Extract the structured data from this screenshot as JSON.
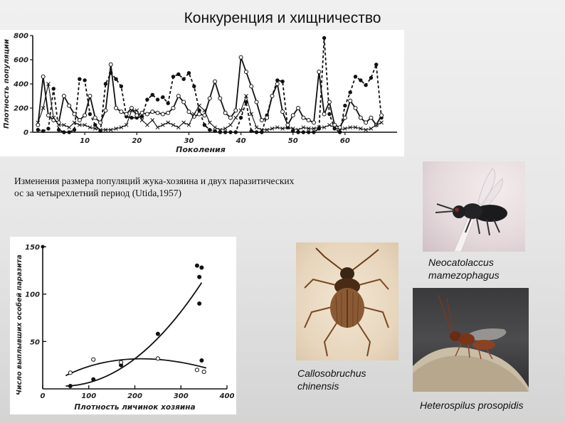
{
  "slide": {
    "title": "Конкуренция и хищничество",
    "caption_line1": "Изменения размера популяций жука-хозяина и двух паразитических",
    "caption_line2": "ос за четырехлетний период (Utida,1957)"
  },
  "species": {
    "neocatolaccus_line1": "Neocatolaccus",
    "neocatolaccus_line2": "mamezophagus",
    "callosobruchus_line1": "Callosobruchus",
    "callosobruchus_line2": "chinensis",
    "heterospilus": "Heterospilus prosopidis"
  },
  "chart_data": [
    {
      "type": "line",
      "ylabel": "Плотность популяции",
      "xlabel": "Поколения",
      "ylim": [
        0,
        800
      ],
      "xlim": [
        0,
        70
      ],
      "yticks": [
        "0",
        "200",
        "400",
        "600",
        "800"
      ],
      "xticks": [
        "10",
        "20",
        "30",
        "40",
        "50",
        "60"
      ],
      "grid": false,
      "series": [
        {
          "marker": "filled-circle",
          "dash": "dashed",
          "x": [
            1,
            2,
            3,
            4,
            5,
            6,
            7,
            8,
            9,
            10,
            11,
            12,
            13,
            14,
            15,
            16,
            17,
            18,
            19,
            20,
            21,
            22,
            23,
            24,
            25,
            26,
            27,
            28,
            29,
            30,
            31,
            32,
            33,
            34,
            35,
            36,
            37,
            38,
            39,
            40,
            41,
            42,
            43,
            44,
            45,
            46,
            47,
            48,
            49,
            50,
            51,
            52,
            53,
            54,
            55,
            56,
            57,
            58,
            59,
            60,
            61,
            62,
            63,
            64,
            65,
            66,
            67
          ],
          "y": [
            20,
            10,
            30,
            360,
            20,
            0,
            0,
            20,
            440,
            430,
            150,
            60,
            10,
            400,
            490,
            440,
            380,
            130,
            120,
            120,
            130,
            270,
            310,
            270,
            290,
            240,
            460,
            480,
            440,
            490,
            380,
            180,
            60,
            20,
            10,
            0,
            0,
            0,
            0,
            120,
            250,
            10,
            0,
            0,
            140,
            300,
            430,
            420,
            40,
            10,
            0,
            0,
            0,
            0,
            30,
            780,
            150,
            30,
            0,
            220,
            330,
            460,
            430,
            390,
            450,
            560,
            120
          ]
        },
        {
          "marker": "open-circle",
          "dash": "solid",
          "x": [
            1,
            2,
            3,
            4,
            5,
            6,
            7,
            8,
            9,
            10,
            11,
            12,
            13,
            14,
            15,
            16,
            17,
            18,
            19,
            20,
            21,
            22,
            23,
            24,
            25,
            26,
            27,
            28,
            29,
            30,
            31,
            32,
            33,
            34,
            35,
            36,
            37,
            38,
            39,
            40,
            41,
            42,
            43,
            44,
            45,
            46,
            47,
            48,
            49,
            50,
            51,
            52,
            53,
            54,
            55,
            56,
            57,
            58,
            59,
            60,
            61,
            62,
            63,
            64,
            65,
            66,
            67
          ],
          "y": [
            60,
            460,
            140,
            100,
            80,
            300,
            220,
            150,
            100,
            140,
            300,
            120,
            80,
            180,
            560,
            200,
            170,
            150,
            200,
            140,
            160,
            150,
            170,
            160,
            150,
            160,
            200,
            300,
            250,
            170,
            130,
            150,
            140,
            280,
            420,
            280,
            160,
            120,
            180,
            620,
            500,
            380,
            250,
            100,
            120,
            300,
            400,
            170,
            60,
            140,
            200,
            120,
            100,
            80,
            500,
            150,
            250,
            60,
            40,
            120,
            260,
            200,
            120,
            80,
            120,
            60,
            140
          ]
        },
        {
          "marker": "cross",
          "dash": "solid",
          "x": [
            1,
            2,
            3,
            4,
            5,
            6,
            7,
            8,
            9,
            10,
            11,
            12,
            13,
            14,
            15,
            16,
            17,
            18,
            19,
            20,
            21,
            22,
            23,
            24,
            25,
            26,
            27,
            28,
            29,
            30,
            31,
            32,
            33,
            34,
            35,
            36,
            37,
            38,
            39,
            40,
            41,
            42,
            43,
            44,
            45,
            46,
            47,
            48,
            49,
            50,
            51,
            52,
            53,
            54,
            55,
            56,
            57,
            58,
            59,
            60,
            61,
            62,
            63,
            64,
            65,
            66,
            67
          ],
          "y": [
            80,
            200,
            400,
            120,
            60,
            60,
            40,
            80,
            60,
            60,
            40,
            30,
            20,
            20,
            20,
            30,
            40,
            60,
            180,
            180,
            100,
            60,
            100,
            40,
            60,
            80,
            60,
            40,
            80,
            60,
            150,
            220,
            180,
            80,
            40,
            20,
            30,
            60,
            120,
            180,
            300,
            150,
            40,
            20,
            20,
            30,
            40,
            30,
            40,
            30,
            20,
            40,
            30,
            30,
            40,
            40,
            60,
            40,
            20,
            30,
            40,
            40,
            30,
            20,
            30,
            60,
            80
          ]
        }
      ]
    },
    {
      "type": "scatter",
      "ylabel": "Число выплывших особей паразита",
      "xlabel": "Плотность личинок хозяина",
      "xlim": [
        0,
        400
      ],
      "ylim": [
        0,
        150
      ],
      "xticks": [
        "0",
        "100",
        "200",
        "300",
        "400"
      ],
      "yticks": [
        "50",
        "100",
        "150"
      ],
      "series": [
        {
          "marker": "filled-circle",
          "x": [
            60,
            110,
            170,
            250,
            340,
            335,
            340,
            345,
            345
          ],
          "y": [
            3,
            10,
            25,
            58,
            118,
            130,
            90,
            128,
            30
          ],
          "trend": "rising-curve"
        },
        {
          "marker": "open-circle",
          "x": [
            60,
            110,
            170,
            250,
            335,
            350
          ],
          "y": [
            17,
            31,
            28,
            32,
            20,
            18
          ],
          "trend": "hump-curve"
        }
      ]
    }
  ]
}
